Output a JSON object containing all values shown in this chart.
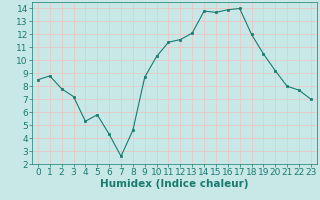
{
  "x": [
    0,
    1,
    2,
    3,
    4,
    5,
    6,
    7,
    8,
    9,
    10,
    11,
    12,
    13,
    14,
    15,
    16,
    17,
    18,
    19,
    20,
    21,
    22,
    23
  ],
  "y": [
    8.5,
    8.8,
    7.8,
    7.2,
    5.3,
    5.8,
    4.3,
    2.6,
    4.6,
    8.7,
    10.3,
    11.4,
    11.6,
    12.1,
    13.8,
    13.7,
    13.9,
    14.0,
    12.0,
    10.5,
    9.2,
    8.0,
    7.7,
    7.0
  ],
  "line_color": "#1a7a6e",
  "marker": "s",
  "marker_size": 2,
  "bg_color": "#c8e8e8",
  "grid_color": "#e8c8c8",
  "xlabel": "Humidex (Indice chaleur)",
  "tick_fontsize": 6.5,
  "xlabel_fontsize": 7.5,
  "ylim": [
    2,
    14.5
  ],
  "xlim": [
    -0.5,
    23.5
  ],
  "yticks": [
    2,
    3,
    4,
    5,
    6,
    7,
    8,
    9,
    10,
    11,
    12,
    13,
    14
  ],
  "xticks": [
    0,
    1,
    2,
    3,
    4,
    5,
    6,
    7,
    8,
    9,
    10,
    11,
    12,
    13,
    14,
    15,
    16,
    17,
    18,
    19,
    20,
    21,
    22,
    23
  ]
}
